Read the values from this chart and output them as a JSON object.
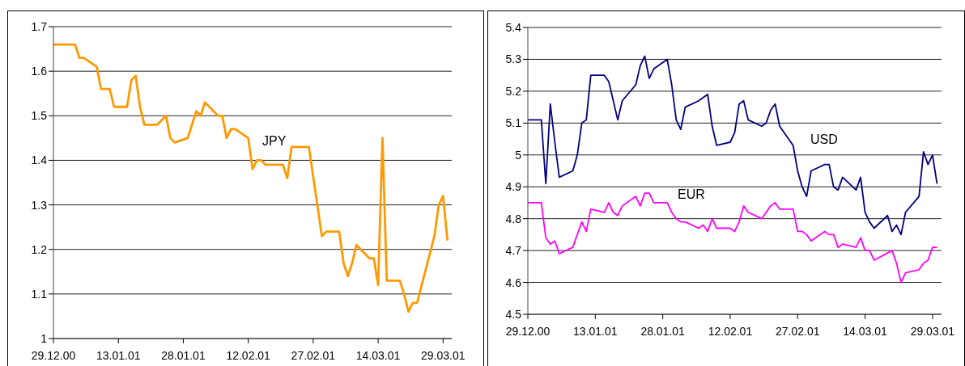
{
  "chart_data": [
    {
      "type": "line",
      "grid": "y",
      "marker": "none",
      "line_style": "solid",
      "xlim": [
        "2000-12-29",
        "2001-03-31"
      ],
      "xticks": [
        {
          "value": "2000-12-29",
          "label": "29.12.00"
        },
        {
          "value": "2001-01-13",
          "label": "13.01.01"
        },
        {
          "value": "2001-01-28",
          "label": "28.01.01"
        },
        {
          "value": "2001-02-12",
          "label": "12.02.01"
        },
        {
          "value": "2001-02-27",
          "label": "27.02.01"
        },
        {
          "value": "2001-03-14",
          "label": "14.03.01"
        },
        {
          "value": "2001-03-29",
          "label": "29.03.01"
        }
      ],
      "ylim": [
        1,
        1.7
      ],
      "yticks": [
        1,
        1.1,
        1.2,
        1.3,
        1.4,
        1.5,
        1.6,
        1.7
      ],
      "series": [
        {
          "name": "JPY",
          "color": "#ff9900",
          "x": [
            "2000-12-29",
            "2001-01-03",
            "2001-01-04",
            "2001-01-05",
            "2001-01-08",
            "2001-01-09",
            "2001-01-10",
            "2001-01-11",
            "2001-01-12",
            "2001-01-15",
            "2001-01-16",
            "2001-01-17",
            "2001-01-18",
            "2001-01-19",
            "2001-01-22",
            "2001-01-23",
            "2001-01-24",
            "2001-01-25",
            "2001-01-26",
            "2001-01-29",
            "2001-01-31",
            "2001-02-01",
            "2001-02-02",
            "2001-02-05",
            "2001-02-06",
            "2001-02-07",
            "2001-02-08",
            "2001-02-09",
            "2001-02-12",
            "2001-02-13",
            "2001-02-14",
            "2001-02-15",
            "2001-02-16",
            "2001-02-19",
            "2001-02-20",
            "2001-02-21",
            "2001-02-22",
            "2001-02-26",
            "2001-03-01",
            "2001-03-02",
            "2001-03-05",
            "2001-03-06",
            "2001-03-07",
            "2001-03-08",
            "2001-03-09",
            "2001-03-12",
            "2001-03-13",
            "2001-03-14",
            "2001-03-15",
            "2001-03-16",
            "2001-03-19",
            "2001-03-20",
            "2001-03-21",
            "2001-03-22",
            "2001-03-23",
            "2001-03-27",
            "2001-03-28",
            "2001-03-29",
            "2001-03-30"
          ],
          "values": [
            1.66,
            1.66,
            1.63,
            1.63,
            1.61,
            1.56,
            1.56,
            1.56,
            1.52,
            1.52,
            1.58,
            1.59,
            1.52,
            1.48,
            1.48,
            1.49,
            1.5,
            1.45,
            1.44,
            1.45,
            1.51,
            1.5,
            1.53,
            1.5,
            1.5,
            1.45,
            1.47,
            1.47,
            1.45,
            1.38,
            1.4,
            1.4,
            1.39,
            1.39,
            1.39,
            1.36,
            1.43,
            1.43,
            1.23,
            1.24,
            1.24,
            1.17,
            1.14,
            1.17,
            1.21,
            1.18,
            1.18,
            1.12,
            1.45,
            1.13,
            1.13,
            1.1,
            1.06,
            1.08,
            1.08,
            1.23,
            1.3,
            1.32,
            1.22
          ]
        }
      ]
    },
    {
      "type": "line",
      "grid": "y",
      "marker": "none",
      "line_style": "solid",
      "xlim": [
        "2000-12-29",
        "2001-03-31"
      ],
      "xticks": [
        {
          "value": "2000-12-29",
          "label": "29.12.00"
        },
        {
          "value": "2001-01-13",
          "label": "13.01.01"
        },
        {
          "value": "2001-01-28",
          "label": "28.01.01"
        },
        {
          "value": "2001-02-12",
          "label": "12.02.01"
        },
        {
          "value": "2001-02-27",
          "label": "27.02.01"
        },
        {
          "value": "2001-03-14",
          "label": "14.03.01"
        },
        {
          "value": "2001-03-29",
          "label": "29.03.01"
        }
      ],
      "ylim": [
        4.5,
        5.4
      ],
      "yticks": [
        4.5,
        4.6,
        4.7,
        4.8,
        4.9,
        5,
        5.1,
        5.2,
        5.3,
        5.4
      ],
      "series": [
        {
          "name": "USD",
          "color": "#000080",
          "x": [
            "2000-12-29",
            "2001-01-01",
            "2001-01-02",
            "2001-01-03",
            "2001-01-04",
            "2001-01-05",
            "2001-01-08",
            "2001-01-09",
            "2001-01-10",
            "2001-01-11",
            "2001-01-12",
            "2001-01-15",
            "2001-01-16",
            "2001-01-18",
            "2001-01-19",
            "2001-01-22",
            "2001-01-23",
            "2001-01-24",
            "2001-01-25",
            "2001-01-26",
            "2001-01-29",
            "2001-01-30",
            "2001-01-31",
            "2001-02-01",
            "2001-02-02",
            "2001-02-05",
            "2001-02-06",
            "2001-02-07",
            "2001-02-08",
            "2001-02-09",
            "2001-02-12",
            "2001-02-13",
            "2001-02-14",
            "2001-02-15",
            "2001-02-16",
            "2001-02-19",
            "2001-02-20",
            "2001-02-21",
            "2001-02-22",
            "2001-02-23",
            "2001-02-26",
            "2001-02-27",
            "2001-02-28",
            "2001-03-01",
            "2001-03-02",
            "2001-03-05",
            "2001-03-06",
            "2001-03-07",
            "2001-03-08",
            "2001-03-09",
            "2001-03-12",
            "2001-03-13",
            "2001-03-14",
            "2001-03-15",
            "2001-03-16",
            "2001-03-19",
            "2001-03-20",
            "2001-03-21",
            "2001-03-22",
            "2001-03-23",
            "2001-03-26",
            "2001-03-27",
            "2001-03-28",
            "2001-03-29",
            "2001-03-30"
          ],
          "values": [
            5.11,
            5.11,
            4.91,
            5.16,
            5.04,
            4.93,
            4.95,
            5.0,
            5.1,
            5.11,
            5.25,
            5.25,
            5.23,
            5.11,
            5.17,
            5.22,
            5.28,
            5.31,
            5.24,
            5.27,
            5.3,
            5.22,
            5.11,
            5.08,
            5.15,
            5.17,
            5.18,
            5.19,
            5.09,
            5.03,
            5.04,
            5.07,
            5.16,
            5.17,
            5.11,
            5.09,
            5.1,
            5.14,
            5.16,
            5.09,
            5.03,
            4.95,
            4.9,
            4.87,
            4.95,
            4.97,
            4.97,
            4.9,
            4.89,
            4.93,
            4.89,
            4.93,
            4.82,
            4.79,
            4.77,
            4.81,
            4.76,
            4.78,
            4.75,
            4.82,
            4.87,
            5.01,
            4.97,
            5.0,
            4.91
          ]
        },
        {
          "name": "EUR",
          "color": "#ff00ff",
          "x": [
            "2000-12-29",
            "2001-01-01",
            "2001-01-02",
            "2001-01-03",
            "2001-01-04",
            "2001-01-05",
            "2001-01-08",
            "2001-01-09",
            "2001-01-10",
            "2001-01-11",
            "2001-01-12",
            "2001-01-15",
            "2001-01-16",
            "2001-01-17",
            "2001-01-18",
            "2001-01-19",
            "2001-01-22",
            "2001-01-23",
            "2001-01-24",
            "2001-01-25",
            "2001-01-26",
            "2001-01-29",
            "2001-01-30",
            "2001-01-31",
            "2001-02-01",
            "2001-02-02",
            "2001-02-05",
            "2001-02-06",
            "2001-02-07",
            "2001-02-08",
            "2001-02-09",
            "2001-02-12",
            "2001-02-13",
            "2001-02-14",
            "2001-02-15",
            "2001-02-16",
            "2001-02-19",
            "2001-02-20",
            "2001-02-21",
            "2001-02-22",
            "2001-02-23",
            "2001-02-26",
            "2001-02-27",
            "2001-02-28",
            "2001-03-01",
            "2001-03-02",
            "2001-03-05",
            "2001-03-06",
            "2001-03-07",
            "2001-03-08",
            "2001-03-09",
            "2001-03-12",
            "2001-03-13",
            "2001-03-14",
            "2001-03-15",
            "2001-03-16",
            "2001-03-20",
            "2001-03-21",
            "2001-03-22",
            "2001-03-23",
            "2001-03-26",
            "2001-03-27",
            "2001-03-28",
            "2001-03-29",
            "2001-03-30"
          ],
          "values": [
            4.85,
            4.85,
            4.74,
            4.72,
            4.73,
            4.69,
            4.71,
            4.75,
            4.79,
            4.76,
            4.83,
            4.82,
            4.85,
            4.82,
            4.81,
            4.84,
            4.87,
            4.84,
            4.88,
            4.88,
            4.85,
            4.85,
            4.82,
            4.8,
            4.79,
            4.79,
            4.77,
            4.78,
            4.76,
            4.8,
            4.77,
            4.77,
            4.76,
            4.79,
            4.84,
            4.82,
            4.8,
            4.82,
            4.84,
            4.85,
            4.83,
            4.83,
            4.76,
            4.76,
            4.75,
            4.73,
            4.76,
            4.75,
            4.75,
            4.71,
            4.72,
            4.71,
            4.74,
            4.7,
            4.7,
            4.67,
            4.7,
            4.66,
            4.6,
            4.63,
            4.64,
            4.66,
            4.67,
            4.71,
            4.71
          ]
        }
      ]
    }
  ]
}
